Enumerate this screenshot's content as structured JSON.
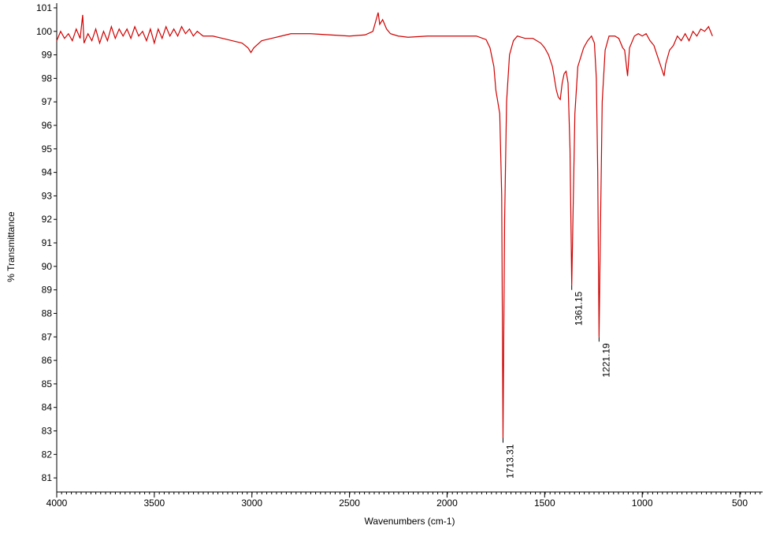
{
  "chart_data": {
    "type": "line",
    "x_label": "Wavenumbers (cm-1)",
    "y_label": "% Transmittance",
    "xlim": [
      4000,
      383
    ],
    "ylim": [
      80.4,
      101.2
    ],
    "x_reversed": true,
    "xticks": [
      4000,
      3500,
      3000,
      2500,
      2000,
      1500,
      1000,
      500
    ],
    "yticks": [
      81,
      82,
      83,
      84,
      85,
      86,
      87,
      88,
      89,
      90,
      91,
      92,
      93,
      94,
      95,
      96,
      97,
      98,
      99,
      100,
      101
    ],
    "series": [
      {
        "color": "#d00000",
        "x": [
          4000,
          3980,
          3960,
          3940,
          3920,
          3900,
          3880,
          3867,
          3860,
          3840,
          3820,
          3800,
          3780,
          3760,
          3740,
          3720,
          3700,
          3680,
          3660,
          3640,
          3620,
          3600,
          3580,
          3560,
          3540,
          3520,
          3500,
          3480,
          3460,
          3440,
          3420,
          3400,
          3380,
          3360,
          3340,
          3320,
          3300,
          3280,
          3250,
          3200,
          3150,
          3100,
          3050,
          3020,
          3005,
          2990,
          2950,
          2900,
          2850,
          2800,
          2700,
          2600,
          2500,
          2420,
          2380,
          2353,
          2345,
          2330,
          2310,
          2290,
          2250,
          2200,
          2100,
          2000,
          1900,
          1850,
          1800,
          1780,
          1760,
          1750,
          1740,
          1730,
          1720,
          1713.31,
          1705,
          1695,
          1680,
          1660,
          1640,
          1600,
          1560,
          1520,
          1500,
          1480,
          1460,
          1440,
          1430,
          1420,
          1410,
          1400,
          1390,
          1380,
          1370,
          1361.15,
          1355,
          1345,
          1330,
          1300,
          1280,
          1260,
          1245,
          1235,
          1228,
          1221.19,
          1215,
          1205,
          1190,
          1170,
          1140,
          1120,
          1100,
          1090,
          1075,
          1065,
          1040,
          1020,
          1000,
          980,
          960,
          940,
          920,
          888,
          880,
          860,
          840,
          820,
          800,
          780,
          760,
          740,
          720,
          700,
          680,
          660,
          650,
          640
        ],
        "values": [
          99.6,
          100.0,
          99.7,
          99.9,
          99.6,
          100.1,
          99.7,
          100.7,
          99.5,
          99.9,
          99.6,
          100.1,
          99.5,
          100.0,
          99.6,
          100.2,
          99.7,
          100.1,
          99.8,
          100.1,
          99.7,
          100.2,
          99.8,
          100.0,
          99.6,
          100.1,
          99.5,
          100.1,
          99.7,
          100.2,
          99.8,
          100.1,
          99.8,
          100.2,
          99.9,
          100.1,
          99.8,
          100.0,
          99.8,
          99.8,
          99.7,
          99.6,
          99.5,
          99.3,
          99.1,
          99.3,
          99.6,
          99.7,
          99.8,
          99.9,
          99.9,
          99.85,
          99.8,
          99.85,
          100.0,
          100.8,
          100.3,
          100.5,
          100.1,
          99.9,
          99.8,
          99.75,
          99.8,
          99.8,
          99.8,
          99.8,
          99.65,
          99.3,
          98.5,
          97.5,
          97.0,
          96.5,
          93,
          82.7,
          92,
          97,
          99.0,
          99.6,
          99.8,
          99.7,
          99.7,
          99.5,
          99.3,
          99.0,
          98.5,
          97.5,
          97.2,
          97.1,
          97.8,
          98.2,
          98.3,
          97.8,
          95,
          89.2,
          92,
          96.5,
          98.5,
          99.3,
          99.6,
          99.8,
          99.5,
          98,
          94,
          87.0,
          91,
          97,
          99.2,
          99.8,
          99.8,
          99.7,
          99.3,
          99.2,
          98.1,
          99.3,
          99.8,
          99.9,
          99.8,
          99.9,
          99.6,
          99.4,
          98.9,
          98.1,
          98.6,
          99.2,
          99.4,
          99.8,
          99.6,
          99.9,
          99.6,
          100.0,
          99.8,
          100.1,
          100.0,
          100.2,
          100.0,
          99.8
        ]
      }
    ],
    "annotations": [
      {
        "x": 1713.31,
        "y": 82.7
      },
      {
        "x": 1361.15,
        "y": 89.2
      },
      {
        "x": 1221.19,
        "y": 87.0
      }
    ]
  }
}
